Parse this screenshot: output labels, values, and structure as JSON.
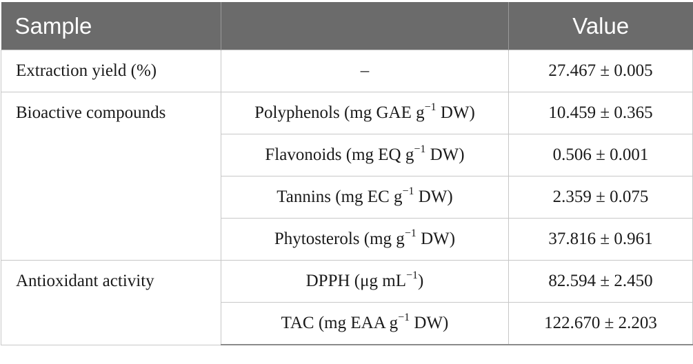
{
  "header": {
    "col_sample": "Sample",
    "col_parameter": "",
    "col_value": "Value"
  },
  "rows": {
    "extraction": {
      "group": "Extraction yield (%)",
      "parameter": "–",
      "value": "27.467 ± 0.005"
    },
    "bioactive": {
      "group": "Bioactive compounds",
      "items": [
        {
          "label": "Polyphenols (mg GAE g",
          "unit": " DW)",
          "value": "10.459 ± 0.365"
        },
        {
          "label": "Flavonoids (mg EQ g",
          "unit": " DW)",
          "value": "0.506 ± 0.001"
        },
        {
          "label": "Tannins (mg EC g",
          "unit": " DW)",
          "value": "2.359 ± 0.075"
        },
        {
          "label": "Phytosterols (mg g",
          "unit": " DW)",
          "value": "37.816 ± 0.961"
        }
      ]
    },
    "antioxidant": {
      "group": "Antioxidant activity",
      "items": [
        {
          "label": "DPPH (μg mL",
          "unit": ")",
          "value": "82.594 ± 2.450"
        },
        {
          "label": "TAC (mg EAA g",
          "unit": " DW)",
          "value": "122.670 ± 2.203"
        }
      ]
    },
    "exponent": "−1"
  }
}
